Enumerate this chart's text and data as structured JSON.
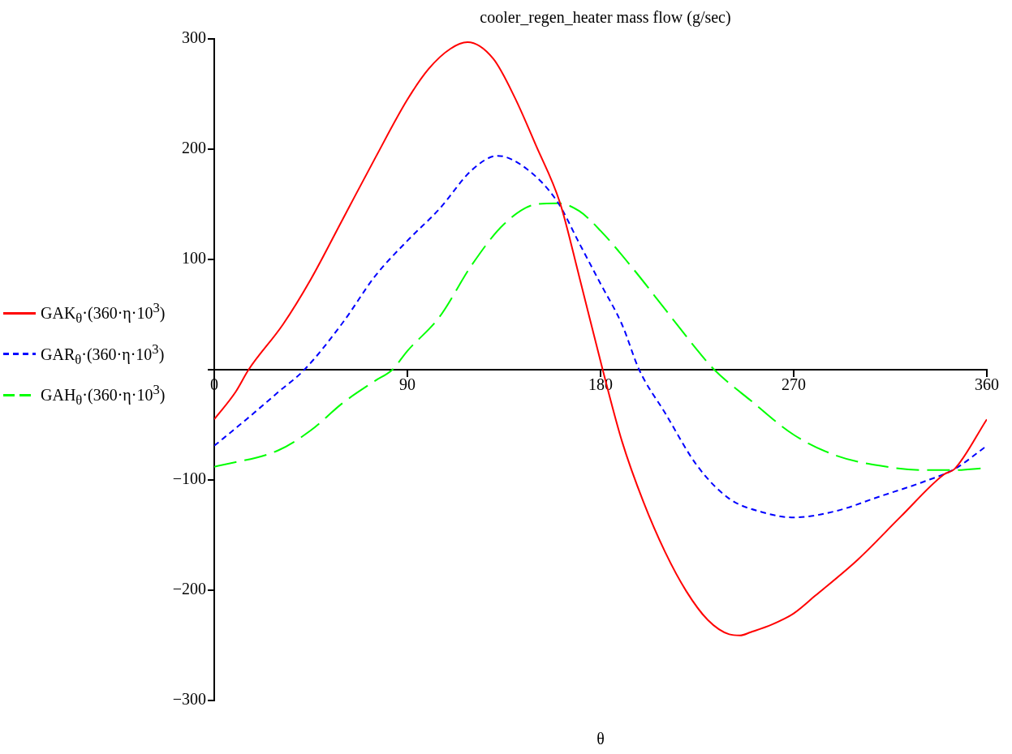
{
  "chart_data": {
    "type": "line",
    "title": "cooler_regen_heater mass flow (g/sec)",
    "xlabel": "θ",
    "series": [
      {
        "name": "GAK$_{θ}$·(360·η·10$^{3}$)",
        "color": "#ff0000",
        "line_style": "solid",
        "x": [
          0,
          10,
          16,
          32,
          45,
          60,
          75,
          90,
          100,
          110,
          118,
          130,
          140,
          150,
          161,
          170,
          181,
          190,
          200,
          210,
          220,
          230,
          240,
          245,
          250,
          260,
          270,
          280,
          300,
          320,
          340,
          345,
          360
        ],
        "values": [
          -45,
          -20,
          0,
          41,
          82,
          137,
          192,
          245,
          273,
          291,
          297,
          282,
          247,
          203,
          152,
          85,
          0,
          -65,
          -120,
          -165,
          -201,
          -227,
          -240,
          -241,
          -238,
          -231,
          -221,
          -205,
          -172,
          -133,
          -95,
          -90,
          -45
        ]
      },
      {
        "name": "GAR$_{θ}$·(360·η·10$^{3}$)",
        "color": "#0000ff",
        "line_style": "dotted",
        "x": [
          0,
          15,
          30,
          42,
          60,
          75,
          90,
          105,
          120,
          132,
          145,
          160,
          170,
          180,
          190,
          198,
          210,
          225,
          240,
          255,
          270,
          290,
          310,
          330,
          345,
          360
        ],
        "values": [
          -69,
          -45,
          -20,
          0,
          43,
          85,
          117,
          146,
          181,
          194,
          183,
          152,
          115,
          78,
          41,
          0,
          -39,
          -87,
          -117,
          -129,
          -134,
          -128,
          -115,
          -102,
          -90,
          -69
        ]
      },
      {
        "name": "GAH$_{θ}$·(360·η·10$^{3}$)",
        "color": "#00ff00",
        "line_style": "dashed",
        "x": [
          0,
          30,
          45,
          60,
          75,
          83,
          90,
          105,
          120,
          135,
          150,
          160,
          170,
          180,
          195,
          210,
          225,
          233,
          250,
          270,
          290,
          310,
          330,
          345,
          360
        ],
        "values": [
          -88,
          -73,
          -55,
          -30,
          -10,
          0,
          17,
          48,
          95,
          132,
          150,
          151,
          144,
          126,
          92,
          55,
          18,
          0,
          -28,
          -59,
          -78,
          -87,
          -91,
          -91,
          -89
        ]
      }
    ],
    "xlim": [
      0,
      360
    ],
    "xticks": [
      0,
      90,
      180,
      270,
      360
    ],
    "ylim": [
      -300,
      300
    ],
    "yticks": [
      {
        "value": -300,
        "label": "−300"
      },
      {
        "value": -200,
        "label": "−200"
      },
      {
        "value": -100,
        "label": "−100"
      },
      {
        "value": 0,
        "label": null
      },
      100,
      200,
      300
    ],
    "grid": false,
    "legend": "left",
    "marker": "none"
  }
}
